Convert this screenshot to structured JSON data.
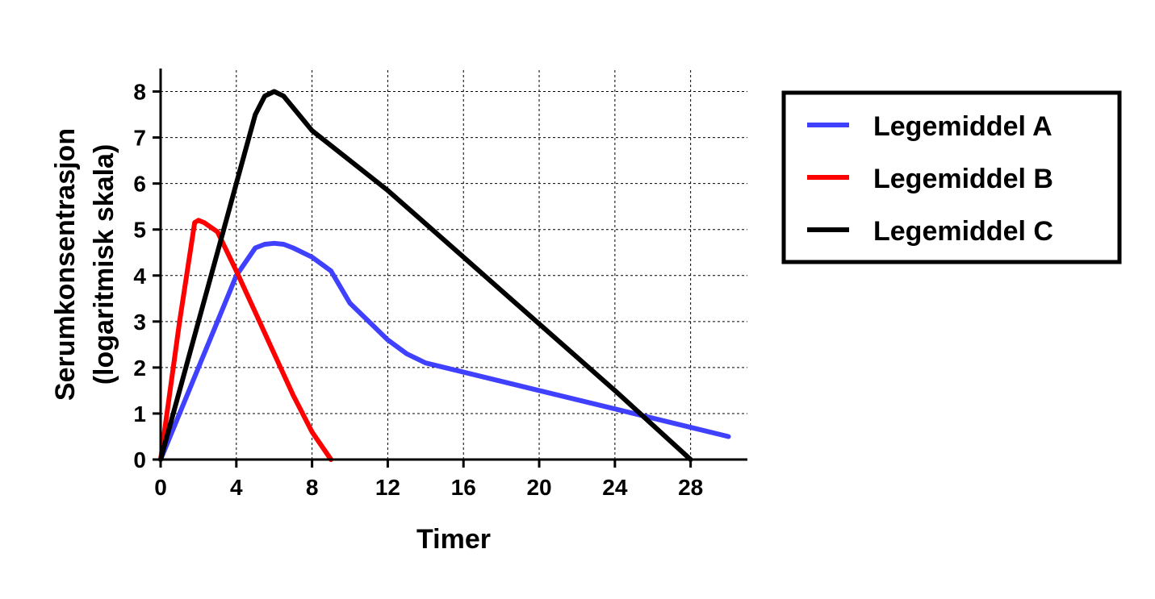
{
  "chart_data": {
    "type": "line",
    "xlabel": "Timer",
    "ylabel_lines": [
      "Serumkonsentrasjon",
      "(logaritmisk skala)"
    ],
    "xlim": [
      0,
      31
    ],
    "ylim": [
      0,
      8.5
    ],
    "xticks": [
      0,
      4,
      8,
      12,
      16,
      20,
      24,
      28
    ],
    "yticks": [
      0,
      1,
      2,
      3,
      4,
      5,
      6,
      7,
      8
    ],
    "grid": true,
    "legend_position": "right",
    "series": [
      {
        "name": "Legemiddel A",
        "color": "#4040ff",
        "x": [
          0,
          1,
          2,
          3,
          4,
          5,
          5.5,
          6,
          6.5,
          7,
          8,
          9,
          10,
          11,
          12,
          13,
          14,
          16,
          20,
          24,
          28,
          30
        ],
        "y": [
          0,
          1,
          2,
          3,
          4,
          4.6,
          4.68,
          4.7,
          4.68,
          4.6,
          4.4,
          4.1,
          3.4,
          3.0,
          2.6,
          2.3,
          2.1,
          1.9,
          1.5,
          1.1,
          0.7,
          0.5
        ]
      },
      {
        "name": "Legemiddel B",
        "color": "#ff0000",
        "x": [
          0,
          1,
          1.8,
          2,
          2.3,
          3,
          4,
          5,
          6,
          7,
          8,
          9
        ],
        "y": [
          0,
          3,
          5.15,
          5.2,
          5.15,
          4.95,
          4.1,
          3.2,
          2.3,
          1.4,
          0.6,
          0
        ]
      },
      {
        "name": "Legemiddel C",
        "color": "#000000",
        "x": [
          0,
          1,
          2,
          3,
          4,
          5,
          5.5,
          6,
          6.5,
          8,
          12,
          16,
          20,
          24,
          28
        ],
        "y": [
          0,
          1.5,
          3.0,
          4.5,
          6.0,
          7.5,
          7.9,
          8.0,
          7.9,
          7.15,
          5.85,
          4.4,
          2.95,
          1.5,
          0
        ]
      }
    ]
  }
}
